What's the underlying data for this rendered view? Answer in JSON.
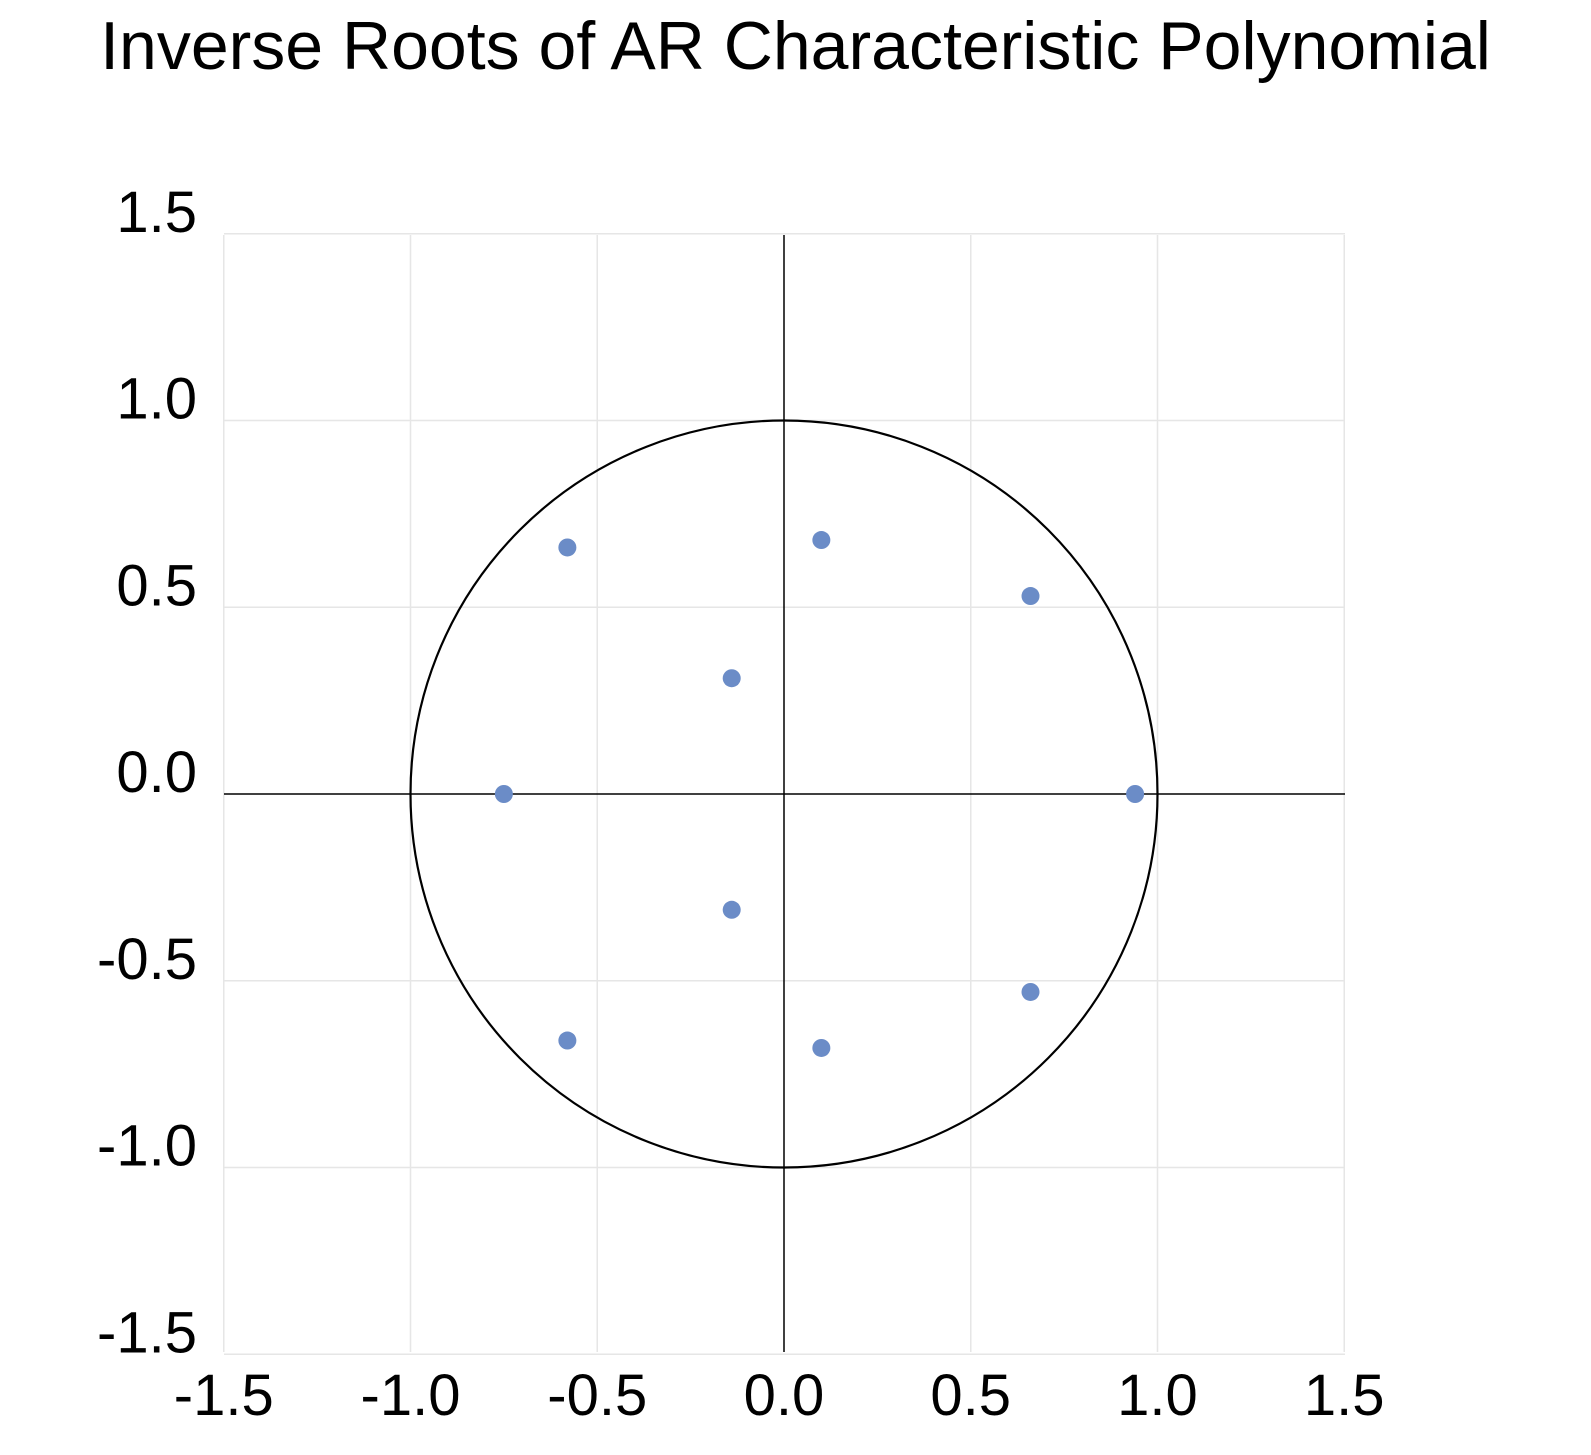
{
  "chart_data": {
    "type": "scatter",
    "title": "Inverse Roots of AR Characteristic Polynomial",
    "xlabel": "",
    "ylabel": "",
    "xlim": [
      -1.5,
      1.5
    ],
    "ylim": [
      -1.5,
      1.5
    ],
    "x_ticks": [
      "-1.5",
      "-1.0",
      "-0.5",
      "0.0",
      "0.5",
      "1.0",
      "1.5"
    ],
    "y_ticks": [
      "1.5",
      "1.0",
      "0.5",
      "0.0",
      "-0.5",
      "-1.0",
      "-1.5"
    ],
    "grid": true,
    "unit_circle": true,
    "legend": "none",
    "marker_color": "#6b8cc7",
    "series": [
      {
        "points": [
          {
            "x": -0.58,
            "y": 0.66
          },
          {
            "x": 0.1,
            "y": 0.68
          },
          {
            "x": 0.66,
            "y": 0.53
          },
          {
            "x": -0.14,
            "y": 0.31
          },
          {
            "x": -0.75,
            "y": 0.0
          },
          {
            "x": 0.94,
            "y": 0.0
          },
          {
            "x": -0.14,
            "y": -0.31
          },
          {
            "x": 0.66,
            "y": -0.53
          },
          {
            "x": -0.58,
            "y": -0.66
          },
          {
            "x": 0.1,
            "y": -0.68
          }
        ]
      }
    ]
  }
}
